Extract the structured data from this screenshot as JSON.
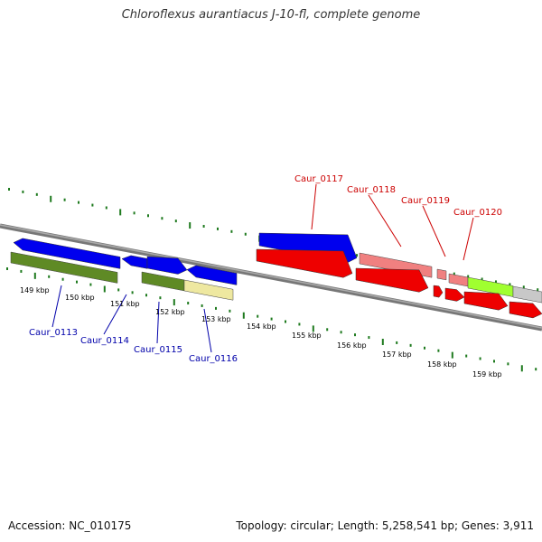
{
  "title": "Chloroflexus aurantiacus J-10-fl, complete genome",
  "footer": {
    "accession": "Accession: NC_010175",
    "summary": "Topology: circular; Length: 5,258,541 bp; Genes: 3,911"
  },
  "colors": {
    "tick": "#1e7a1e",
    "backbone": "#888888",
    "forward_label": "#0000aa",
    "reverse_label": "#cc0000",
    "blue": "#0000ee",
    "red": "#ee0000",
    "olive": "#5f8a25",
    "khaki": "#eee8a0",
    "salmon": "#f08080",
    "lime": "#a0ff30",
    "grey": "#c8c8c8"
  },
  "kbp_labels": [
    "149 kbp",
    "150 kbp",
    "151 kbp",
    "152 kbp",
    "153 kbp",
    "154 kbp",
    "155 kbp",
    "156 kbp",
    "157 kbp",
    "158 kbp",
    "159 kbp"
  ],
  "gene_labels": {
    "forward": [
      "Caur_0113",
      "Caur_0114",
      "Caur_0115",
      "Caur_0116"
    ],
    "reverse": [
      "Caur_0117",
      "Caur_0118",
      "Caur_0119",
      "Caur_0120"
    ]
  }
}
